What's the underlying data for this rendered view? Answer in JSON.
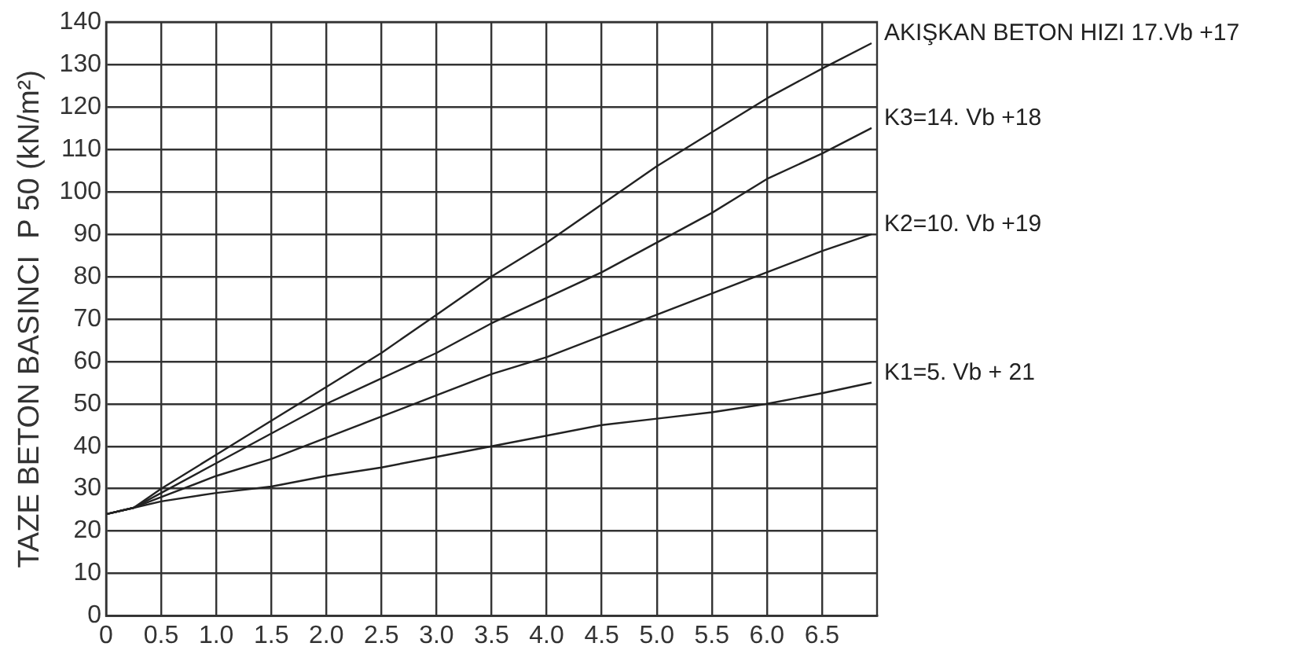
{
  "chart_data": {
    "type": "line",
    "ylabel": "TAZE BETON BASINCI  P 50 (kN/m²)",
    "xlim": [
      0,
      7
    ],
    "xticks": [
      0,
      0.5,
      {
        "value": 1,
        "label": "1.0"
      },
      1.5,
      {
        "value": 2,
        "label": "2.0"
      },
      2.5,
      {
        "value": 3,
        "label": "3.0"
      },
      3.5,
      {
        "value": 4,
        "label": "4.0"
      },
      4.5,
      {
        "value": 5,
        "label": "5.0"
      },
      5.5,
      {
        "value": 6,
        "label": "6.0"
      },
      6.5
    ],
    "ylim": [
      0,
      140
    ],
    "yticks": [
      0,
      10,
      20,
      30,
      40,
      50,
      60,
      70,
      80,
      90,
      100,
      110,
      120,
      130,
      140
    ],
    "grid": true,
    "legend": false,
    "marker": "none",
    "line_style": "solid",
    "series": [
      {
        "name": "AKIŞKAN BETON HIZI 17.Vb +17",
        "color": "#222222",
        "x": [
          0,
          0.25,
          0.5,
          1,
          1.5,
          2,
          2.5,
          3,
          3.5,
          4,
          4.5,
          5,
          5.5,
          6,
          6.5,
          6.95
        ],
        "values": [
          24,
          25.5,
          30,
          38,
          46,
          54,
          62,
          71,
          80,
          88,
          97,
          106,
          114,
          122,
          129,
          135
        ]
      },
      {
        "name": "K3=14. Vb +18",
        "color": "#222222",
        "x": [
          0,
          0.25,
          0.5,
          1,
          1.5,
          2,
          2.5,
          3,
          3.5,
          4,
          4.5,
          5,
          5.5,
          6,
          6.5,
          6.95
        ],
        "values": [
          24,
          25.5,
          29,
          36,
          43,
          50,
          56,
          62,
          69,
          75,
          81,
          88,
          95,
          103,
          109,
          115
        ]
      },
      {
        "name": "K2=10. Vb +19",
        "color": "#222222",
        "x": [
          0,
          0.25,
          0.5,
          1,
          1.5,
          2,
          2.5,
          3,
          3.5,
          4,
          4.5,
          5,
          5.5,
          6,
          6.5,
          6.95
        ],
        "values": [
          24,
          25.5,
          28,
          33,
          37,
          42,
          47,
          52,
          57,
          61,
          66,
          71,
          76,
          81,
          86,
          90
        ]
      },
      {
        "name": "K1=5. Vb + 21",
        "color": "#222222",
        "x": [
          0,
          0.25,
          0.5,
          1,
          1.5,
          2,
          2.5,
          3,
          3.5,
          4,
          4.5,
          5,
          5.5,
          6,
          6.5,
          6.95
        ],
        "values": [
          24,
          25.5,
          27,
          29,
          30.5,
          33,
          35,
          37.5,
          40,
          42.5,
          45,
          46.5,
          48,
          50,
          52.5,
          55
        ]
      }
    ]
  }
}
